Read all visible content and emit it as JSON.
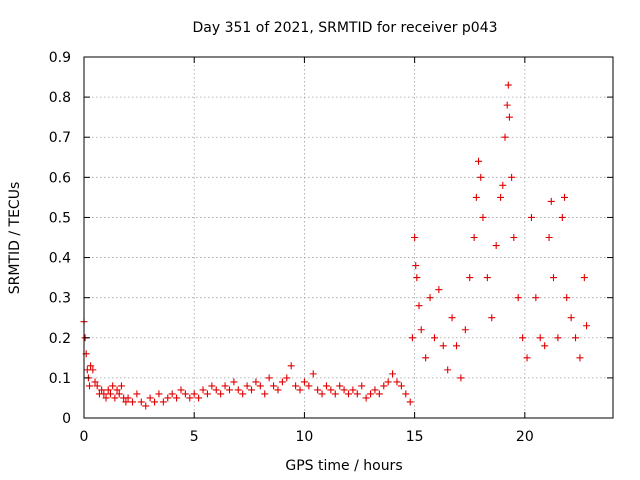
{
  "chart_data": {
    "type": "scatter",
    "title": "Day 351 of 2021, SRMTID for receiver p043",
    "xlabel": "GPS time / hours",
    "ylabel": "SRMTID / TECUs",
    "xlim": [
      0,
      24
    ],
    "ylim": [
      0,
      0.9
    ],
    "xticks": [
      0,
      5,
      10,
      15,
      20
    ],
    "xtick_labels": [
      "0",
      "5",
      "10",
      "15",
      "20"
    ],
    "yticks": [
      0,
      0.1,
      0.2,
      0.3,
      0.4,
      0.5,
      0.6,
      0.7,
      0.8,
      0.9
    ],
    "ytick_labels": [
      "0",
      "0.1",
      "0.2",
      "0.3",
      "0.4",
      "0.5",
      "0.6",
      "0.7",
      "0.8",
      "0.9"
    ],
    "grid": true,
    "marker": "+",
    "color": "#e00000",
    "series": [
      {
        "name": "SRMTID",
        "points": [
          [
            0.0,
            0.24
          ],
          [
            0.05,
            0.2
          ],
          [
            0.1,
            0.16
          ],
          [
            0.15,
            0.12
          ],
          [
            0.2,
            0.1
          ],
          [
            0.25,
            0.08
          ],
          [
            0.3,
            0.13
          ],
          [
            0.4,
            0.12
          ],
          [
            0.5,
            0.09
          ],
          [
            0.6,
            0.08
          ],
          [
            0.7,
            0.06
          ],
          [
            0.8,
            0.07
          ],
          [
            0.9,
            0.06
          ],
          [
            1.0,
            0.05
          ],
          [
            1.1,
            0.07
          ],
          [
            1.2,
            0.06
          ],
          [
            1.3,
            0.08
          ],
          [
            1.4,
            0.05
          ],
          [
            1.5,
            0.07
          ],
          [
            1.6,
            0.06
          ],
          [
            1.7,
            0.08
          ],
          [
            1.8,
            0.05
          ],
          [
            1.9,
            0.04
          ],
          [
            2.0,
            0.05
          ],
          [
            2.2,
            0.04
          ],
          [
            2.4,
            0.06
          ],
          [
            2.6,
            0.04
          ],
          [
            2.8,
            0.03
          ],
          [
            3.0,
            0.05
          ],
          [
            3.2,
            0.04
          ],
          [
            3.4,
            0.06
          ],
          [
            3.6,
            0.04
          ],
          [
            3.8,
            0.05
          ],
          [
            4.0,
            0.06
          ],
          [
            4.2,
            0.05
          ],
          [
            4.4,
            0.07
          ],
          [
            4.6,
            0.06
          ],
          [
            4.8,
            0.05
          ],
          [
            5.0,
            0.06
          ],
          [
            5.2,
            0.05
          ],
          [
            5.4,
            0.07
          ],
          [
            5.6,
            0.06
          ],
          [
            5.8,
            0.08
          ],
          [
            6.0,
            0.07
          ],
          [
            6.2,
            0.06
          ],
          [
            6.4,
            0.08
          ],
          [
            6.6,
            0.07
          ],
          [
            6.8,
            0.09
          ],
          [
            7.0,
            0.07
          ],
          [
            7.2,
            0.06
          ],
          [
            7.4,
            0.08
          ],
          [
            7.6,
            0.07
          ],
          [
            7.8,
            0.09
          ],
          [
            8.0,
            0.08
          ],
          [
            8.2,
            0.06
          ],
          [
            8.4,
            0.1
          ],
          [
            8.6,
            0.08
          ],
          [
            8.8,
            0.07
          ],
          [
            9.0,
            0.09
          ],
          [
            9.2,
            0.1
          ],
          [
            9.4,
            0.13
          ],
          [
            9.6,
            0.08
          ],
          [
            9.8,
            0.07
          ],
          [
            10.0,
            0.09
          ],
          [
            10.2,
            0.08
          ],
          [
            10.4,
            0.11
          ],
          [
            10.6,
            0.07
          ],
          [
            10.8,
            0.06
          ],
          [
            11.0,
            0.08
          ],
          [
            11.2,
            0.07
          ],
          [
            11.4,
            0.06
          ],
          [
            11.6,
            0.08
          ],
          [
            11.8,
            0.07
          ],
          [
            12.0,
            0.06
          ],
          [
            12.2,
            0.07
          ],
          [
            12.4,
            0.06
          ],
          [
            12.6,
            0.08
          ],
          [
            12.8,
            0.05
          ],
          [
            13.0,
            0.06
          ],
          [
            13.2,
            0.07
          ],
          [
            13.4,
            0.06
          ],
          [
            13.6,
            0.08
          ],
          [
            13.8,
            0.09
          ],
          [
            14.0,
            0.11
          ],
          [
            14.2,
            0.09
          ],
          [
            14.4,
            0.08
          ],
          [
            14.6,
            0.06
          ],
          [
            14.8,
            0.04
          ],
          [
            14.9,
            0.2
          ],
          [
            15.0,
            0.45
          ],
          [
            15.05,
            0.38
          ],
          [
            15.1,
            0.35
          ],
          [
            15.2,
            0.28
          ],
          [
            15.3,
            0.22
          ],
          [
            15.5,
            0.15
          ],
          [
            15.7,
            0.3
          ],
          [
            15.9,
            0.2
          ],
          [
            16.1,
            0.32
          ],
          [
            16.3,
            0.18
          ],
          [
            16.5,
            0.12
          ],
          [
            16.7,
            0.25
          ],
          [
            16.9,
            0.18
          ],
          [
            17.1,
            0.1
          ],
          [
            17.3,
            0.22
          ],
          [
            17.5,
            0.35
          ],
          [
            17.7,
            0.45
          ],
          [
            17.8,
            0.55
          ],
          [
            17.9,
            0.64
          ],
          [
            18.0,
            0.6
          ],
          [
            18.1,
            0.5
          ],
          [
            18.3,
            0.35
          ],
          [
            18.5,
            0.25
          ],
          [
            18.7,
            0.43
          ],
          [
            18.9,
            0.55
          ],
          [
            19.0,
            0.58
          ],
          [
            19.1,
            0.7
          ],
          [
            19.2,
            0.78
          ],
          [
            19.25,
            0.83
          ],
          [
            19.3,
            0.75
          ],
          [
            19.4,
            0.6
          ],
          [
            19.5,
            0.45
          ],
          [
            19.7,
            0.3
          ],
          [
            19.9,
            0.2
          ],
          [
            20.1,
            0.15
          ],
          [
            20.3,
            0.5
          ],
          [
            20.5,
            0.3
          ],
          [
            20.7,
            0.2
          ],
          [
            20.9,
            0.18
          ],
          [
            21.1,
            0.45
          ],
          [
            21.2,
            0.54
          ],
          [
            21.3,
            0.35
          ],
          [
            21.5,
            0.2
          ],
          [
            21.7,
            0.5
          ],
          [
            21.8,
            0.55
          ],
          [
            21.9,
            0.3
          ],
          [
            22.1,
            0.25
          ],
          [
            22.3,
            0.2
          ],
          [
            22.5,
            0.15
          ],
          [
            22.7,
            0.35
          ],
          [
            22.8,
            0.23
          ]
        ]
      }
    ]
  }
}
